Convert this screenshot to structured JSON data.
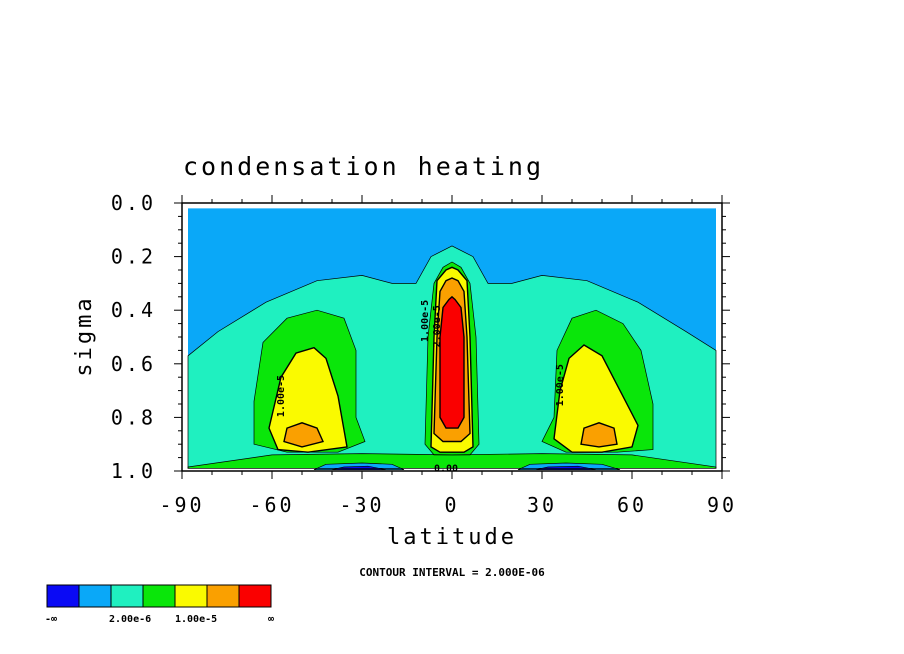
{
  "chart_data": {
    "type": "contour",
    "title": "condensation heating",
    "xlabel": "latitude",
    "ylabel": "sigma",
    "xlim": [
      -90,
      90
    ],
    "ylim": [
      0.0,
      1.0
    ],
    "y_inverted": true,
    "xticks": [
      "-90",
      "-60",
      "-30",
      "0",
      "30",
      "60",
      "90"
    ],
    "yticks": [
      "0.0",
      "0.2",
      "0.4",
      "0.6",
      "0.8",
      "1.0"
    ],
    "contour_interval_text": "CONTOUR INTERVAL = 2.000E-06",
    "contour_labels": [
      {
        "text": "1.00e-5",
        "lat": -57,
        "sigma": 0.72
      },
      {
        "text": "1.00e-5",
        "lat": -9,
        "sigma": 0.44
      },
      {
        "text": "2.00e-5",
        "lat": -5,
        "sigma": 0.46
      },
      {
        "text": "1.00e-5",
        "lat": 36,
        "sigma": 0.68
      },
      {
        "text": "0.00",
        "lat": -2,
        "sigma": 0.99
      }
    ],
    "colorbar": {
      "colors": [
        "#0a0af5",
        "#0aa8f8",
        "#1ff0c0",
        "#0ae60a",
        "#fafa00",
        "#faa000",
        "#fa0000"
      ],
      "labels": [
        "-∞",
        "2.00e-6",
        "1.00e-5",
        "∞"
      ]
    },
    "regions": [
      {
        "name": "background",
        "level": 1,
        "polygon": [
          [
            -88,
            0.02
          ],
          [
            88,
            0.02
          ],
          [
            88,
            0.97
          ],
          [
            -88,
            0.97
          ]
        ]
      },
      {
        "name": "mid-troposphere",
        "level": 2,
        "polygon": [
          [
            -88,
            0.57
          ],
          [
            -78,
            0.48
          ],
          [
            -62,
            0.37
          ],
          [
            -45,
            0.29
          ],
          [
            -30,
            0.27
          ],
          [
            -20,
            0.3
          ],
          [
            -12,
            0.3
          ],
          [
            -7,
            0.2
          ],
          [
            0,
            0.16
          ],
          [
            7,
            0.2
          ],
          [
            12,
            0.3
          ],
          [
            20,
            0.3
          ],
          [
            30,
            0.27
          ],
          [
            45,
            0.29
          ],
          [
            62,
            0.37
          ],
          [
            78,
            0.48
          ],
          [
            88,
            0.55
          ],
          [
            88,
            0.99
          ],
          [
            -88,
            0.99
          ]
        ]
      },
      {
        "name": "sh-midlat-green",
        "level": 3,
        "polygon": [
          [
            -66,
            0.74
          ],
          [
            -63,
            0.52
          ],
          [
            -55,
            0.43
          ],
          [
            -45,
            0.4
          ],
          [
            -36,
            0.43
          ],
          [
            -32,
            0.55
          ],
          [
            -32,
            0.8
          ],
          [
            -29,
            0.89
          ],
          [
            -38,
            0.93
          ],
          [
            -55,
            0.93
          ],
          [
            -66,
            0.9
          ]
        ]
      },
      {
        "name": "nh-midlat-green",
        "level": 3,
        "polygon": [
          [
            34,
            0.8
          ],
          [
            35,
            0.55
          ],
          [
            40,
            0.43
          ],
          [
            48,
            0.4
          ],
          [
            57,
            0.45
          ],
          [
            63,
            0.55
          ],
          [
            67,
            0.75
          ],
          [
            67,
            0.92
          ],
          [
            55,
            0.93
          ],
          [
            38,
            0.93
          ],
          [
            30,
            0.89
          ]
        ]
      },
      {
        "name": "tropics-green",
        "level": 3,
        "polygon": [
          [
            -9,
            0.9
          ],
          [
            -8,
            0.5
          ],
          [
            -6,
            0.3
          ],
          [
            -3,
            0.24
          ],
          [
            0,
            0.22
          ],
          [
            3,
            0.24
          ],
          [
            6,
            0.3
          ],
          [
            8,
            0.5
          ],
          [
            9,
            0.9
          ],
          [
            6,
            0.94
          ],
          [
            -6,
            0.94
          ]
        ]
      },
      {
        "name": "surface-green",
        "level": 3,
        "polygon": [
          [
            -88,
            0.985
          ],
          [
            -60,
            0.94
          ],
          [
            -30,
            0.935
          ],
          [
            0,
            0.94
          ],
          [
            30,
            0.935
          ],
          [
            60,
            0.94
          ],
          [
            88,
            0.985
          ],
          [
            88,
            0.99
          ],
          [
            -88,
            0.99
          ]
        ]
      },
      {
        "name": "sh-midlat-yellow",
        "level": 4,
        "polygon": [
          [
            -61,
            0.84
          ],
          [
            -57,
            0.65
          ],
          [
            -52,
            0.56
          ],
          [
            -46,
            0.54
          ],
          [
            -42,
            0.58
          ],
          [
            -38,
            0.72
          ],
          [
            -35,
            0.91
          ],
          [
            -48,
            0.93
          ],
          [
            -58,
            0.92
          ]
        ]
      },
      {
        "name": "nh-midlat-yellow",
        "level": 4,
        "polygon": [
          [
            34,
            0.88
          ],
          [
            36,
            0.7
          ],
          [
            39,
            0.58
          ],
          [
            44,
            0.53
          ],
          [
            50,
            0.57
          ],
          [
            56,
            0.7
          ],
          [
            62,
            0.83
          ],
          [
            60,
            0.91
          ],
          [
            50,
            0.93
          ],
          [
            40,
            0.93
          ]
        ]
      },
      {
        "name": "tropics-yellow",
        "level": 4,
        "polygon": [
          [
            -7,
            0.91
          ],
          [
            -6,
            0.5
          ],
          [
            -5,
            0.29
          ],
          [
            -2,
            0.25
          ],
          [
            0,
            0.24
          ],
          [
            2,
            0.25
          ],
          [
            5,
            0.29
          ],
          [
            6,
            0.5
          ],
          [
            7,
            0.91
          ],
          [
            4,
            0.93
          ],
          [
            -4,
            0.93
          ]
        ]
      },
      {
        "name": "sh-midlat-orange",
        "level": 5,
        "polygon": [
          [
            -56,
            0.89
          ],
          [
            -55,
            0.84
          ],
          [
            -50,
            0.82
          ],
          [
            -45,
            0.84
          ],
          [
            -43,
            0.89
          ],
          [
            -50,
            0.91
          ]
        ]
      },
      {
        "name": "nh-midlat-orange",
        "level": 5,
        "polygon": [
          [
            43,
            0.9
          ],
          [
            44,
            0.84
          ],
          [
            49,
            0.82
          ],
          [
            54,
            0.84
          ],
          [
            55,
            0.9
          ],
          [
            49,
            0.91
          ]
        ]
      },
      {
        "name": "tropics-orange",
        "level": 5,
        "polygon": [
          [
            -6,
            0.86
          ],
          [
            -5,
            0.5
          ],
          [
            -4,
            0.33
          ],
          [
            -2,
            0.29
          ],
          [
            0,
            0.28
          ],
          [
            2,
            0.29
          ],
          [
            4,
            0.33
          ],
          [
            5,
            0.5
          ],
          [
            6,
            0.86
          ],
          [
            3,
            0.89
          ],
          [
            -3,
            0.89
          ]
        ]
      },
      {
        "name": "tropics-red",
        "level": 6,
        "polygon": [
          [
            -4,
            0.8
          ],
          [
            -4,
            0.5
          ],
          [
            -3,
            0.39
          ],
          [
            -1,
            0.36
          ],
          [
            0,
            0.35
          ],
          [
            1,
            0.36
          ],
          [
            3,
            0.39
          ],
          [
            4,
            0.5
          ],
          [
            4,
            0.8
          ],
          [
            2,
            0.84
          ],
          [
            -2,
            0.84
          ]
        ]
      },
      {
        "name": "sh-surface-cooling-cyan",
        "level": 1,
        "polygon": [
          [
            -46,
            0.995
          ],
          [
            -42,
            0.975
          ],
          [
            -30,
            0.97
          ],
          [
            -20,
            0.975
          ],
          [
            -16,
            0.995
          ]
        ]
      },
      {
        "name": "nh-surface-cooling-cyan",
        "level": 1,
        "polygon": [
          [
            22,
            0.995
          ],
          [
            26,
            0.975
          ],
          [
            38,
            0.97
          ],
          [
            50,
            0.975
          ],
          [
            56,
            0.995
          ]
        ]
      },
      {
        "name": "sh-surface-cooling-blue",
        "level": 0,
        "polygon": [
          [
            -40,
            0.995
          ],
          [
            -36,
            0.985
          ],
          [
            -28,
            0.982
          ],
          [
            -22,
            0.995
          ]
        ]
      },
      {
        "name": "nh-surface-cooling-blue",
        "level": 0,
        "polygon": [
          [
            28,
            0.995
          ],
          [
            32,
            0.985
          ],
          [
            42,
            0.982
          ],
          [
            48,
            0.995
          ]
        ]
      }
    ]
  }
}
